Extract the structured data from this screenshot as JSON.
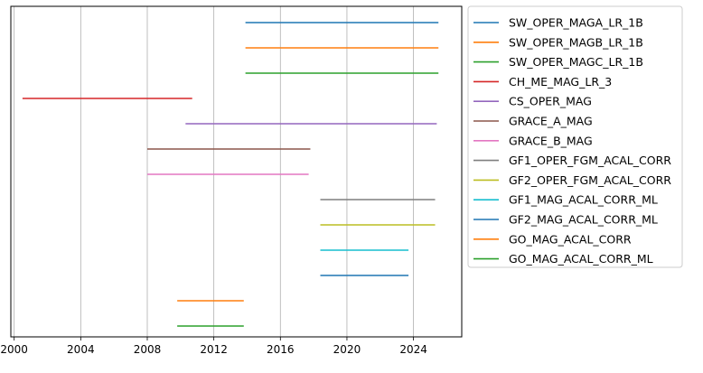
{
  "chart_data": {
    "type": "timeline",
    "title": "",
    "xlabel": "",
    "ylabel": "",
    "xlim": [
      1999.8,
      2026.9
    ],
    "x_ticks": [
      2000,
      2004,
      2008,
      2012,
      2016,
      2020,
      2024
    ],
    "x_tick_labels": [
      "2000",
      "2004",
      "2008",
      "2012",
      "2016",
      "2020",
      "2024"
    ],
    "grid": "vertical",
    "legend_position": "outside-right",
    "series": [
      {
        "name": "SW_OPER_MAGA_LR_1B",
        "start": 2013.9,
        "end": 2025.5,
        "color": "#1f77b4"
      },
      {
        "name": "SW_OPER_MAGB_LR_1B",
        "start": 2013.9,
        "end": 2025.5,
        "color": "#ff7f0e"
      },
      {
        "name": "SW_OPER_MAGC_LR_1B",
        "start": 2013.9,
        "end": 2025.5,
        "color": "#2ca02c"
      },
      {
        "name": "CH_ME_MAG_LR_3",
        "start": 2000.5,
        "end": 2010.7,
        "color": "#d62728"
      },
      {
        "name": "CS_OPER_MAG",
        "start": 2010.3,
        "end": 2025.4,
        "color": "#9467bd"
      },
      {
        "name": "GRACE_A_MAG",
        "start": 2008.0,
        "end": 2017.8,
        "color": "#8c564b"
      },
      {
        "name": "GRACE_B_MAG",
        "start": 2008.0,
        "end": 2017.7,
        "color": "#e377c2"
      },
      {
        "name": "GF1_OPER_FGM_ACAL_CORR",
        "start": 2018.4,
        "end": 2025.3,
        "color": "#7f7f7f"
      },
      {
        "name": "GF2_OPER_FGM_ACAL_CORR",
        "start": 2018.4,
        "end": 2025.3,
        "color": "#bcbd22"
      },
      {
        "name": "GF1_MAG_ACAL_CORR_ML",
        "start": 2018.4,
        "end": 2023.7,
        "color": "#17becf"
      },
      {
        "name": "GF2_MAG_ACAL_CORR_ML",
        "start": 2018.4,
        "end": 2023.7,
        "color": "#1f77b4"
      },
      {
        "name": "GO_MAG_ACAL_CORR",
        "start": 2009.8,
        "end": 2013.8,
        "color": "#ff7f0e"
      },
      {
        "name": "GO_MAG_ACAL_CORR_ML",
        "start": 2009.8,
        "end": 2013.8,
        "color": "#2ca02c"
      }
    ]
  }
}
